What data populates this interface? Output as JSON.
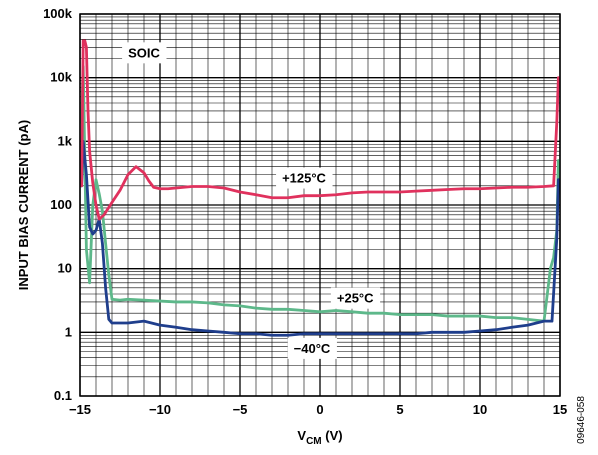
{
  "chart_data": {
    "type": "line",
    "title": "",
    "xlabel": "V",
    "xlabel_sub": "CM",
    "xlabel_unit": " (V)",
    "ylabel": "INPUT BIAS CURRENT (pA)",
    "xlim": [
      -15,
      15
    ],
    "ylim": [
      0.1,
      100000
    ],
    "yscale": "log",
    "grid": true,
    "x_ticks": [
      -15,
      -10,
      -5,
      0,
      5,
      10,
      15
    ],
    "x_tick_labels": [
      "−15",
      "−10",
      "−5",
      "0",
      "5",
      "10",
      "15"
    ],
    "y_ticks": [
      0.1,
      1,
      10,
      100,
      1000,
      10000,
      100000
    ],
    "y_tick_labels": [
      "0.1",
      "1",
      "10",
      "100",
      "1k",
      "10k",
      "100k"
    ],
    "annotations": [
      {
        "text": "SOIC",
        "x": -11.0,
        "y": 25000
      },
      {
        "text": "+125°C",
        "x": -1.0,
        "y": 270
      },
      {
        "text": "+25°C",
        "x": 2.2,
        "y": 3.5
      },
      {
        "text": "−40°C",
        "x": -0.5,
        "y": 0.57
      }
    ],
    "side_label": "09646-058",
    "series": [
      {
        "name": "+125°C",
        "color": "#e0315d",
        "x": [
          -14.9,
          -14.8,
          -14.7,
          -14.6,
          -14.5,
          -14.4,
          -14.2,
          -14.0,
          -13.8,
          -13.5,
          -13.0,
          -12.5,
          -12.0,
          -11.5,
          -11.0,
          -10.7,
          -10.4,
          -10.0,
          -9.5,
          -9.0,
          -8.0,
          -7.0,
          -6.0,
          -5.0,
          -4.0,
          -3.0,
          -2.0,
          -1.0,
          0.0,
          1.0,
          2.0,
          3.0,
          4.0,
          5.0,
          6.0,
          7.0,
          8.0,
          9.0,
          10.0,
          11.0,
          12.0,
          13.0,
          14.0,
          14.6,
          14.8,
          14.9
        ],
        "y": [
          200,
          38000,
          38000,
          30000,
          3000,
          700,
          220,
          100,
          60,
          70,
          110,
          170,
          300,
          400,
          320,
          240,
          190,
          180,
          180,
          185,
          195,
          195,
          185,
          160,
          145,
          130,
          130,
          140,
          140,
          145,
          155,
          160,
          160,
          160,
          165,
          170,
          175,
          180,
          180,
          185,
          190,
          190,
          195,
          200,
          2000,
          10000
        ]
      },
      {
        "name": "+25°C",
        "color": "#5db88a",
        "x": [
          -14.9,
          -14.8,
          -14.6,
          -14.4,
          -14.2,
          -14.0,
          -13.8,
          -13.6,
          -13.4,
          -13.2,
          -13.0,
          -12.5,
          -12.0,
          -11.0,
          -10.0,
          -9.0,
          -8.0,
          -7.0,
          -6.0,
          -5.0,
          -4.0,
          -3.0,
          -2.0,
          -1.0,
          0.0,
          1.0,
          2.0,
          3.0,
          4.0,
          5.0,
          6.0,
          7.0,
          8.0,
          9.0,
          10.0,
          11.0,
          12.0,
          13.0,
          14.0,
          14.4,
          14.6,
          14.8,
          14.9
        ],
        "y": [
          2000,
          15000,
          20,
          6,
          100,
          250,
          150,
          80,
          25,
          8,
          3.3,
          3.2,
          3.3,
          3.2,
          3.1,
          3.0,
          3.0,
          2.9,
          2.7,
          2.6,
          2.4,
          2.3,
          2.3,
          2.2,
          2.1,
          2.2,
          2.1,
          2.0,
          2.0,
          1.9,
          1.9,
          1.9,
          1.8,
          1.8,
          1.8,
          1.7,
          1.7,
          1.6,
          1.5,
          10,
          15,
          40,
          500
        ]
      },
      {
        "name": "−40°C",
        "color": "#1f3e8c",
        "x": [
          -14.9,
          -14.8,
          -14.6,
          -14.4,
          -14.2,
          -14.0,
          -13.8,
          -13.6,
          -13.4,
          -13.2,
          -13.0,
          -12.0,
          -11.0,
          -10.0,
          -9.0,
          -8.0,
          -7.0,
          -6.0,
          -5.0,
          -4.0,
          -3.0,
          -2.0,
          -1.0,
          0.0,
          1.0,
          2.0,
          3.0,
          4.0,
          5.0,
          6.0,
          7.0,
          8.0,
          9.0,
          10.0,
          11.0,
          12.0,
          13.0,
          14.0,
          14.5,
          14.8,
          14.9
        ],
        "y": [
          200,
          1000,
          300,
          45,
          35,
          40,
          60,
          25,
          5,
          1.6,
          1.4,
          1.4,
          1.5,
          1.3,
          1.2,
          1.1,
          1.05,
          1.0,
          0.95,
          0.95,
          0.9,
          0.9,
          0.95,
          0.95,
          0.95,
          0.95,
          0.95,
          0.95,
          0.95,
          0.95,
          1.0,
          1.0,
          1.0,
          1.05,
          1.1,
          1.2,
          1.3,
          1.5,
          1.5,
          30,
          250
        ]
      }
    ]
  }
}
